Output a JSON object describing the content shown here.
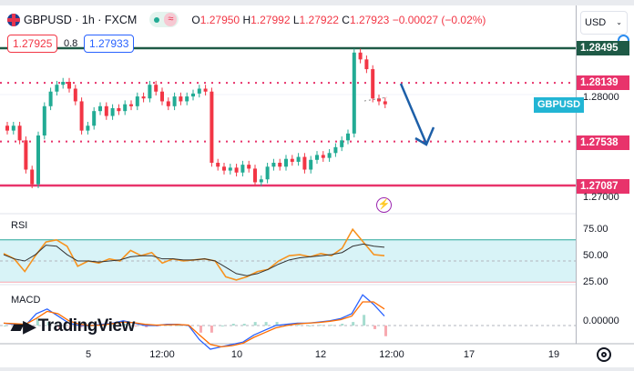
{
  "header": {
    "symbol": "GBPUSD · 1h · FXCM",
    "open_label": "O",
    "open": "1.27950",
    "high_label": "H",
    "high": "1.27992",
    "low_label": "L",
    "low": "1.27922",
    "close_label": "C",
    "close": "1.27923",
    "change": "−0.00027 (−0.02%)",
    "wave_icon": "≈"
  },
  "quote": {
    "bid": "1.27925",
    "spread": "0.8",
    "ask": "1.27933"
  },
  "currency": {
    "value": "USD",
    "chevron": "⌄"
  },
  "levels": [
    {
      "price": 1.28495,
      "label": "1.28495",
      "color": "#1e5a46",
      "style": "solid"
    },
    {
      "price": 1.28139,
      "label": "1.28139",
      "color": "#e8336b",
      "style": "dotted"
    },
    {
      "price": 1.27538,
      "label": "1.27538",
      "color": "#e8336b",
      "style": "dotted"
    },
    {
      "price": 1.27087,
      "label": "1.27087",
      "color": "#e8336b",
      "style": "solid"
    }
  ],
  "axis_labels": {
    "p1": "1.28000",
    "p2": "1.27000",
    "rsi75": "75.00",
    "rsi50": "50.00",
    "rsi25": "25.00",
    "macd0": "0.00000"
  },
  "symbol_tag": "GBPUSD",
  "indicators": {
    "rsi": "RSI",
    "macd": "MACD"
  },
  "time_axis": [
    "5",
    "12:00",
    "10",
    "12",
    "12:00",
    "17",
    "19"
  ],
  "logo": "TradingView",
  "lightning_icon": "⚡",
  "colors": {
    "up": "#22ab94",
    "down": "#f23645",
    "rsi": "#f7931e",
    "rsi_band": "#d8f3f7",
    "macd": "#2962ff",
    "signal": "#ff6d00"
  },
  "closes": [
    1.2765,
    1.277,
    1.2755,
    1.2725,
    1.271,
    1.276,
    1.279,
    1.2805,
    1.2812,
    1.2815,
    1.2808,
    1.2795,
    1.2765,
    1.277,
    1.2785,
    1.279,
    1.278,
    1.2788,
    1.2785,
    1.2792,
    1.279,
    1.28,
    1.2798,
    1.2812,
    1.2805,
    1.2795,
    1.279,
    1.28,
    1.2795,
    1.28,
    1.2803,
    1.2808,
    1.2805,
    1.2732,
    1.2728,
    1.2724,
    1.2727,
    1.2722,
    1.273,
    1.2726,
    1.2712,
    1.2715,
    1.2728,
    1.2732,
    1.2728,
    1.2736,
    1.2733,
    1.2738,
    1.2725,
    1.2735,
    1.274,
    1.2737,
    1.2742,
    1.2748,
    1.2755,
    1.2762,
    1.2845,
    1.2838,
    1.2828,
    1.2798,
    1.2795,
    1.2792
  ],
  "rsi": [
    57,
    52,
    40,
    55,
    68,
    70,
    64,
    45,
    50,
    48,
    52,
    50,
    60,
    55,
    58,
    48,
    52,
    50,
    51,
    52,
    50,
    35,
    32,
    35,
    40,
    42,
    50,
    55,
    56,
    54,
    57,
    55,
    62,
    80,
    68,
    56,
    55
  ],
  "rsi_ma": [
    56,
    52,
    50,
    56,
    65,
    64,
    56,
    50,
    50,
    49,
    50,
    51,
    54,
    55,
    55,
    52,
    52,
    51,
    51,
    52,
    50,
    44,
    38,
    36,
    38,
    42,
    47,
    51,
    53,
    54,
    55,
    56,
    58,
    64,
    66,
    64,
    63
  ],
  "macd": [
    1,
    0.5,
    0,
    5,
    7,
    4,
    1,
    0,
    0,
    0.5,
    1,
    2,
    1,
    0,
    0,
    0.5,
    0.5,
    0,
    -6,
    -10,
    -9,
    -8,
    -7,
    -4,
    -2,
    0,
    0.5,
    1,
    1,
    1.5,
    2,
    3,
    5,
    13,
    9,
    4
  ],
  "signal": [
    1,
    0.8,
    0.5,
    3,
    6,
    5,
    2,
    0.5,
    0,
    0.2,
    0.8,
    1.5,
    1.2,
    0.5,
    0.2,
    0.3,
    0.4,
    0.2,
    -4,
    -8,
    -9,
    -8.5,
    -7.5,
    -5,
    -3,
    -1,
    0,
    0.7,
    1,
    1.3,
    1.8,
    2.5,
    4,
    10,
    10,
    7
  ]
}
